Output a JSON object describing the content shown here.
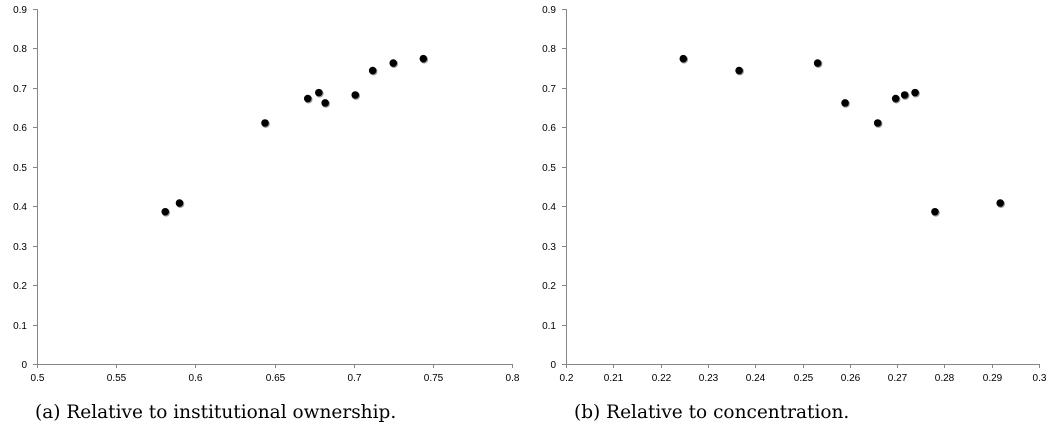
{
  "chart_data": [
    {
      "type": "scatter",
      "title": "",
      "xlabel": "",
      "ylabel": "",
      "xlim": [
        0.5,
        0.8
      ],
      "ylim": [
        0,
        0.9
      ],
      "x_ticks": [
        "0.5",
        "0.55",
        "0.6",
        "0.65",
        "0.7",
        "0.75",
        "0.8"
      ],
      "y_ticks": [
        "0",
        "0.1",
        "0.2",
        "0.3",
        "0.4",
        "0.5",
        "0.6",
        "0.7",
        "0.8",
        "0.9"
      ],
      "grid": false,
      "marker_color": "#000000",
      "points": [
        {
          "x": 0.581,
          "y": 0.386
        },
        {
          "x": 0.59,
          "y": 0.408
        },
        {
          "x": 0.644,
          "y": 0.611
        },
        {
          "x": 0.671,
          "y": 0.673
        },
        {
          "x": 0.678,
          "y": 0.688
        },
        {
          "x": 0.682,
          "y": 0.662
        },
        {
          "x": 0.701,
          "y": 0.682
        },
        {
          "x": 0.712,
          "y": 0.744
        },
        {
          "x": 0.725,
          "y": 0.763
        },
        {
          "x": 0.744,
          "y": 0.774
        }
      ],
      "caption": "(a) Relative to institutional ownership."
    },
    {
      "type": "scatter",
      "title": "",
      "xlabel": "",
      "ylabel": "",
      "xlim": [
        0.2,
        0.3
      ],
      "ylim": [
        0,
        0.9
      ],
      "x_ticks": [
        "0.2",
        "0.21",
        "0.22",
        "0.23",
        "0.24",
        "0.25",
        "0.26",
        "0.27",
        "0.28",
        "0.29",
        "0.3"
      ],
      "y_ticks": [
        "0",
        "0.1",
        "0.2",
        "0.3",
        "0.4",
        "0.5",
        "0.6",
        "0.7",
        "0.8",
        "0.9"
      ],
      "grid": false,
      "marker_color": "#000000",
      "points": [
        {
          "x": 0.2248,
          "y": 0.774
        },
        {
          "x": 0.2366,
          "y": 0.744
        },
        {
          "x": 0.2532,
          "y": 0.763
        },
        {
          "x": 0.259,
          "y": 0.662
        },
        {
          "x": 0.2659,
          "y": 0.611
        },
        {
          "x": 0.2697,
          "y": 0.673
        },
        {
          "x": 0.2716,
          "y": 0.682
        },
        {
          "x": 0.2738,
          "y": 0.688
        },
        {
          "x": 0.278,
          "y": 0.386
        },
        {
          "x": 0.2918,
          "y": 0.408
        }
      ],
      "caption": "(b) Relative to concentration."
    }
  ]
}
